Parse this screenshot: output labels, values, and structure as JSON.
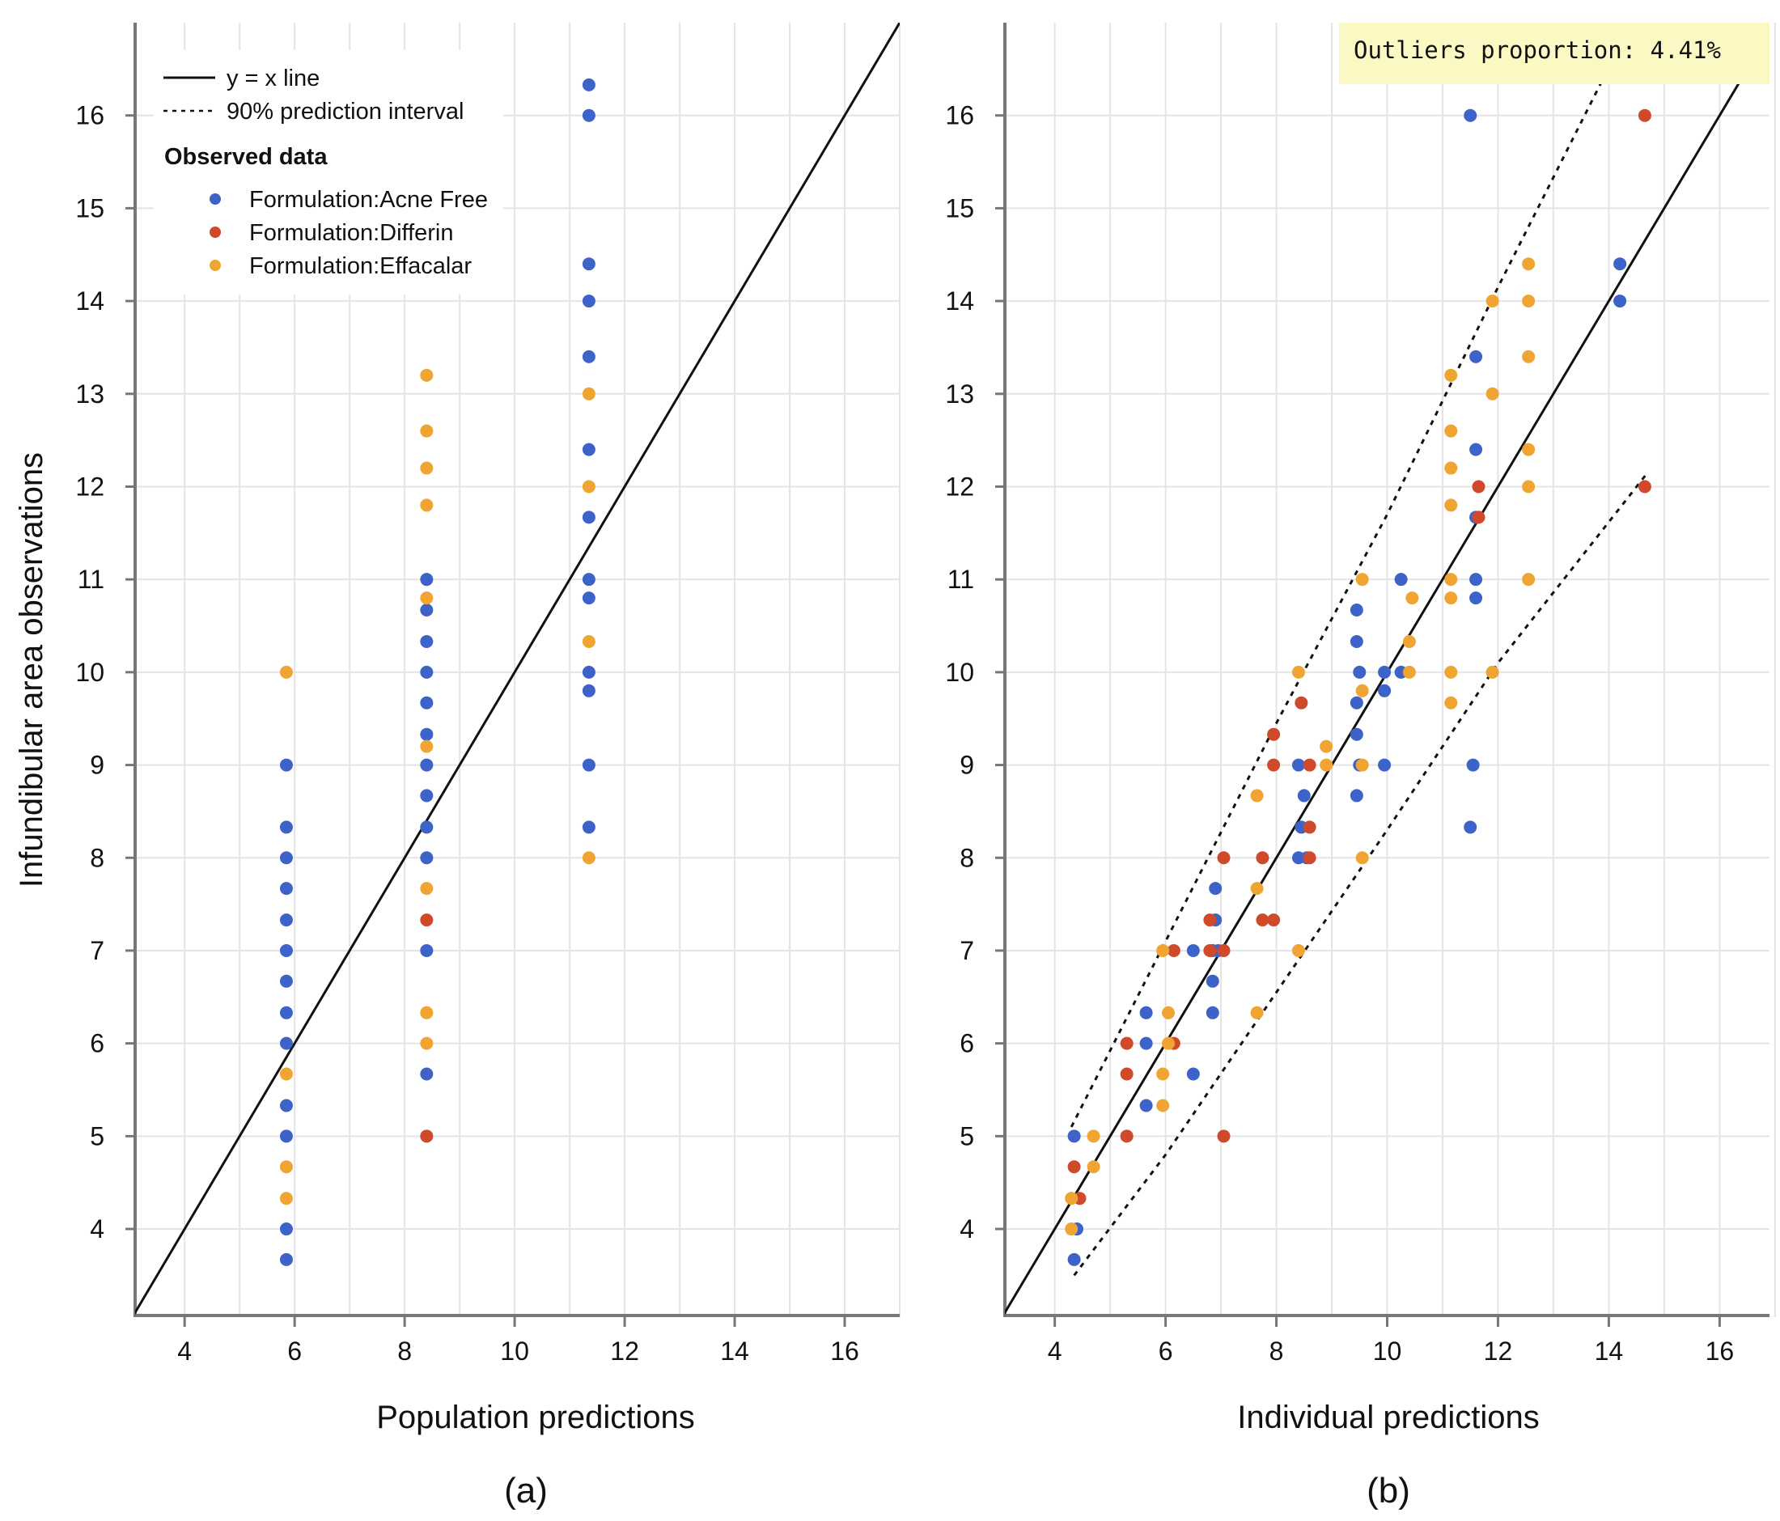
{
  "panels": [
    {
      "caption": "(a)",
      "xlabel": "Population predictions",
      "ylabel": "Infundibular area observations",
      "legend": {
        "line_label": "y = x line",
        "interval_label": "90% prediction interval",
        "heading": "Observed data",
        "series_labels": [
          "Formulation:Acne Free",
          "Formulation:Differin",
          "Formulation:Effacalar"
        ]
      }
    },
    {
      "caption": "(b)",
      "xlabel": "Individual predictions",
      "badge": "Outliers proportion: 4.41%"
    }
  ],
  "colors": {
    "Acne Free": "#3d63c9",
    "Differin": "#cf4a2b",
    "Effacalar": "#f0a533",
    "grid": "#e4e4e4",
    "axis": "#777777",
    "badge_bg": "#fcf8c3"
  },
  "chart_data": [
    {
      "type": "scatter",
      "xlim": [
        3.1,
        17.0
      ],
      "ylim": [
        3.05,
        17.0
      ],
      "x_ticks": [
        4,
        6,
        8,
        10,
        12,
        14,
        16
      ],
      "y_ticks": [
        4,
        5,
        6,
        7,
        8,
        9,
        10,
        11,
        12,
        13,
        14,
        15,
        16
      ],
      "grid": true,
      "legend_position": "top-left",
      "reference_line": "y = x",
      "series": [
        {
          "name": "Formulation:Acne Free",
          "points": [
            [
              5.85,
              3.67
            ],
            [
              5.85,
              4.0
            ],
            [
              5.85,
              5.0
            ],
            [
              5.85,
              5.33
            ],
            [
              5.85,
              6.0
            ],
            [
              5.85,
              6.33
            ],
            [
              5.85,
              6.67
            ],
            [
              5.85,
              7.0
            ],
            [
              5.85,
              7.33
            ],
            [
              5.85,
              7.67
            ],
            [
              5.85,
              8.0
            ],
            [
              5.85,
              8.33
            ],
            [
              5.85,
              9.0
            ],
            [
              8.4,
              5.67
            ],
            [
              8.4,
              7.0
            ],
            [
              8.4,
              8.0
            ],
            [
              8.4,
              8.33
            ],
            [
              8.4,
              8.67
            ],
            [
              8.4,
              9.0
            ],
            [
              8.4,
              9.33
            ],
            [
              8.4,
              9.67
            ],
            [
              8.4,
              10.0
            ],
            [
              8.4,
              10.33
            ],
            [
              8.4,
              10.67
            ],
            [
              8.4,
              11.0
            ],
            [
              11.35,
              8.33
            ],
            [
              11.35,
              9.0
            ],
            [
              11.35,
              9.8
            ],
            [
              11.35,
              10.0
            ],
            [
              11.35,
              10.8
            ],
            [
              11.35,
              11.0
            ],
            [
              11.35,
              11.67
            ],
            [
              11.35,
              12.4
            ],
            [
              11.35,
              13.4
            ],
            [
              11.35,
              14.0
            ],
            [
              11.35,
              14.4
            ],
            [
              11.35,
              16.0
            ],
            [
              11.35,
              16.33
            ]
          ]
        },
        {
          "name": "Formulation:Differin",
          "points": [
            [
              8.4,
              5.0
            ],
            [
              8.4,
              7.33
            ]
          ]
        },
        {
          "name": "Formulation:Effacalar",
          "points": [
            [
              5.85,
              4.33
            ],
            [
              5.85,
              4.67
            ],
            [
              5.85,
              5.67
            ],
            [
              5.85,
              10.0
            ],
            [
              8.4,
              6.0
            ],
            [
              8.4,
              6.33
            ],
            [
              8.4,
              7.67
            ],
            [
              8.4,
              9.2
            ],
            [
              8.4,
              10.8
            ],
            [
              8.4,
              11.8
            ],
            [
              8.4,
              12.2
            ],
            [
              8.4,
              12.6
            ],
            [
              8.4,
              13.2
            ],
            [
              11.35,
              8.0
            ],
            [
              11.35,
              10.33
            ],
            [
              11.35,
              12.0
            ],
            [
              11.35,
              13.0
            ]
          ]
        }
      ]
    },
    {
      "type": "scatter",
      "xlim": [
        3.1,
        16.9
      ],
      "ylim": [
        3.05,
        17.0
      ],
      "x_ticks": [
        4,
        6,
        8,
        10,
        12,
        14,
        16
      ],
      "y_ticks": [
        4,
        5,
        6,
        7,
        8,
        9,
        10,
        11,
        12,
        13,
        14,
        15,
        16
      ],
      "grid": true,
      "reference_line": "y = x",
      "prediction_interval": {
        "upper": [
          [
            4.3,
            5.1
          ],
          [
            6.0,
            7.1
          ],
          [
            8.0,
            9.45
          ],
          [
            10.0,
            11.7
          ],
          [
            12.0,
            14.15
          ],
          [
            13.9,
            16.4
          ]
        ],
        "lower": [
          [
            4.35,
            3.5
          ],
          [
            6.0,
            4.8
          ],
          [
            8.0,
            6.55
          ],
          [
            10.0,
            8.3
          ],
          [
            12.0,
            10.1
          ],
          [
            14.7,
            12.15
          ]
        ]
      },
      "series": [
        {
          "name": "Formulation:Acne Free",
          "points": [
            [
              4.35,
              3.67
            ],
            [
              4.4,
              4.0
            ],
            [
              4.35,
              5.0
            ],
            [
              5.65,
              5.33
            ],
            [
              5.65,
              6.0
            ],
            [
              5.65,
              6.33
            ],
            [
              6.5,
              5.67
            ],
            [
              6.5,
              7.0
            ],
            [
              6.85,
              6.33
            ],
            [
              6.85,
              6.67
            ],
            [
              6.85,
              7.0
            ],
            [
              6.9,
              7.33
            ],
            [
              6.9,
              7.67
            ],
            [
              6.95,
              7.0
            ],
            [
              8.4,
              8.0
            ],
            [
              8.45,
              8.33
            ],
            [
              8.4,
              9.0
            ],
            [
              8.5,
              8.67
            ],
            [
              8.55,
              8.0
            ],
            [
              9.45,
              8.67
            ],
            [
              9.5,
              9.0
            ],
            [
              9.45,
              9.33
            ],
            [
              9.45,
              9.67
            ],
            [
              9.5,
              10.0
            ],
            [
              9.45,
              10.33
            ],
            [
              9.45,
              10.67
            ],
            [
              9.95,
              9.0
            ],
            [
              9.95,
              9.8
            ],
            [
              9.95,
              10.0
            ],
            [
              10.25,
              10.0
            ],
            [
              10.25,
              11.0
            ],
            [
              11.5,
              8.33
            ],
            [
              11.55,
              9.0
            ],
            [
              11.5,
              16.0
            ],
            [
              11.6,
              10.8
            ],
            [
              11.6,
              11.0
            ],
            [
              11.6,
              11.67
            ],
            [
              11.6,
              12.4
            ],
            [
              11.6,
              13.4
            ],
            [
              14.2,
              14.0
            ],
            [
              14.2,
              14.4
            ]
          ]
        },
        {
          "name": "Formulation:Differin",
          "points": [
            [
              4.35,
              4.67
            ],
            [
              4.45,
              4.33
            ],
            [
              5.3,
              5.0
            ],
            [
              5.3,
              5.67
            ],
            [
              5.3,
              6.0
            ],
            [
              6.15,
              6.0
            ],
            [
              6.15,
              7.0
            ],
            [
              6.8,
              7.0
            ],
            [
              6.8,
              7.33
            ],
            [
              7.05,
              5.0
            ],
            [
              7.05,
              7.0
            ],
            [
              7.05,
              8.0
            ],
            [
              7.75,
              7.33
            ],
            [
              7.75,
              8.0
            ],
            [
              7.95,
              7.33
            ],
            [
              7.95,
              9.0
            ],
            [
              7.95,
              9.33
            ],
            [
              8.45,
              9.67
            ],
            [
              8.6,
              8.0
            ],
            [
              8.6,
              8.33
            ],
            [
              8.6,
              9.0
            ],
            [
              11.65,
              11.67
            ],
            [
              11.65,
              12.0
            ],
            [
              14.65,
              12.0
            ],
            [
              14.65,
              16.0
            ]
          ]
        },
        {
          "name": "Formulation:Effacalar",
          "points": [
            [
              4.3,
              4.0
            ],
            [
              4.3,
              4.33
            ],
            [
              4.7,
              4.67
            ],
            [
              4.7,
              5.0
            ],
            [
              5.95,
              5.33
            ],
            [
              5.95,
              5.67
            ],
            [
              5.95,
              7.0
            ],
            [
              6.05,
              6.0
            ],
            [
              6.05,
              6.33
            ],
            [
              7.65,
              6.33
            ],
            [
              7.65,
              7.67
            ],
            [
              7.65,
              8.67
            ],
            [
              8.4,
              7.0
            ],
            [
              8.4,
              10.0
            ],
            [
              8.9,
              9.0
            ],
            [
              8.9,
              9.2
            ],
            [
              9.55,
              8.0
            ],
            [
              9.55,
              9.0
            ],
            [
              9.55,
              9.8
            ],
            [
              9.55,
              11.0
            ],
            [
              10.4,
              10.0
            ],
            [
              10.4,
              10.33
            ],
            [
              10.45,
              10.8
            ],
            [
              11.15,
              9.67
            ],
            [
              11.15,
              10.0
            ],
            [
              11.15,
              10.8
            ],
            [
              11.15,
              11.0
            ],
            [
              11.15,
              11.8
            ],
            [
              11.15,
              12.2
            ],
            [
              11.15,
              12.6
            ],
            [
              11.15,
              13.2
            ],
            [
              11.9,
              10.0
            ],
            [
              11.9,
              13.0
            ],
            [
              11.9,
              14.0
            ],
            [
              12.55,
              11.0
            ],
            [
              12.55,
              12.0
            ],
            [
              12.55,
              12.4
            ],
            [
              12.55,
              13.4
            ],
            [
              12.55,
              14.0
            ],
            [
              12.55,
              14.4
            ]
          ]
        }
      ]
    }
  ]
}
